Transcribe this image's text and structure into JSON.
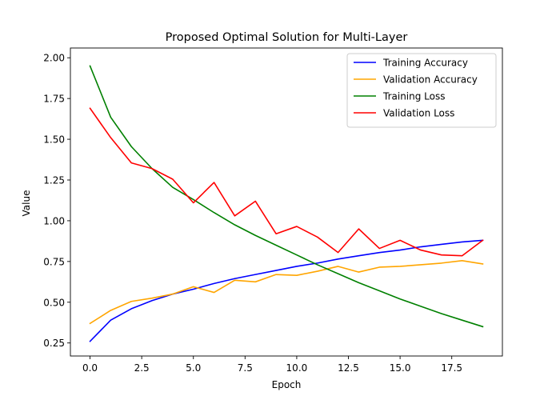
{
  "chart_data": {
    "type": "line",
    "title": "Proposed Optimal Solution for Multi-Layer",
    "xlabel": "Epoch",
    "ylabel": "Value",
    "xlim": [
      -0.95,
      19.95
    ],
    "ylim": [
      0.17,
      2.06
    ],
    "xticks": [
      "0.0",
      "2.5",
      "5.0",
      "7.5",
      "10.0",
      "12.5",
      "15.0",
      "17.5"
    ],
    "yticks": [
      "0.25",
      "0.50",
      "0.75",
      "1.00",
      "1.25",
      "1.50",
      "1.75",
      "2.00"
    ],
    "grid": false,
    "legend_position": "top-right",
    "x": [
      0,
      1,
      2,
      3,
      4,
      5,
      6,
      7,
      8,
      9,
      10,
      11,
      12,
      13,
      14,
      15,
      16,
      17,
      18,
      19
    ],
    "series": [
      {
        "name": "Training Accuracy",
        "color": "#0000ff",
        "values": [
          0.26,
          0.39,
          0.46,
          0.51,
          0.55,
          0.58,
          0.615,
          0.645,
          0.67,
          0.695,
          0.72,
          0.74,
          0.765,
          0.785,
          0.805,
          0.82,
          0.84,
          0.855,
          0.87,
          0.88
        ]
      },
      {
        "name": "Validation Accuracy",
        "color": "#ffa500",
        "values": [
          0.37,
          0.45,
          0.505,
          0.525,
          0.55,
          0.595,
          0.56,
          0.635,
          0.625,
          0.67,
          0.665,
          0.69,
          0.72,
          0.685,
          0.715,
          0.72,
          0.73,
          0.74,
          0.755,
          0.735
        ]
      },
      {
        "name": "Training Loss",
        "color": "#008000",
        "values": [
          1.95,
          1.635,
          1.455,
          1.32,
          1.205,
          1.13,
          1.05,
          0.975,
          0.91,
          0.85,
          0.79,
          0.73,
          0.675,
          0.62,
          0.57,
          0.52,
          0.475,
          0.43,
          0.39,
          0.35
        ]
      },
      {
        "name": "Validation Loss",
        "color": "#ff0000",
        "values": [
          1.69,
          1.51,
          1.355,
          1.32,
          1.255,
          1.11,
          1.235,
          1.03,
          1.12,
          0.92,
          0.965,
          0.9,
          0.805,
          0.95,
          0.83,
          0.88,
          0.82,
          0.79,
          0.785,
          0.88
        ]
      }
    ]
  }
}
